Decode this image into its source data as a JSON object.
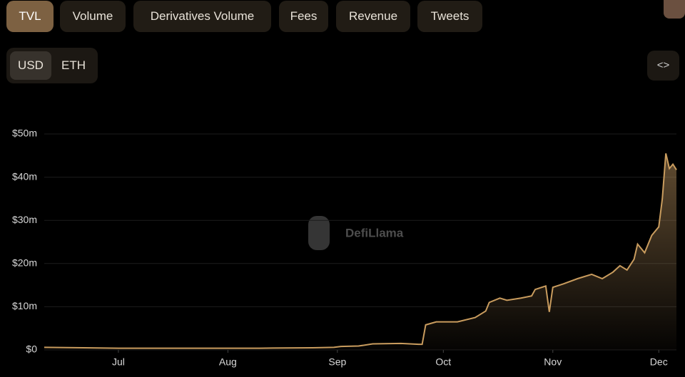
{
  "tabs": [
    "TVL",
    "Volume",
    "Derivatives Volume",
    "Fees",
    "Revenue",
    "Tweets"
  ],
  "currency": [
    "USD",
    "ETH"
  ],
  "watermark": "DefiLlama",
  "chart_data": {
    "type": "area",
    "color": "#c99c5e",
    "grid": true,
    "x": [
      -21,
      -10,
      0,
      20,
      40,
      55,
      61,
      63,
      68,
      72,
      80,
      85,
      86,
      87,
      90,
      96,
      101,
      104,
      105,
      108,
      110,
      114,
      117,
      118,
      121,
      122,
      123,
      126,
      130,
      134,
      137,
      140,
      142,
      144,
      146,
      147,
      149,
      151,
      153,
      154,
      155,
      156,
      157,
      158
    ],
    "values": [
      0.6,
      0.5,
      0.4,
      0.4,
      0.4,
      0.5,
      0.6,
      0.8,
      0.9,
      1.4,
      1.5,
      1.3,
      1.3,
      5.8,
      6.5,
      6.5,
      7.5,
      9,
      11,
      12,
      11.5,
      12,
      12.5,
      14,
      14.8,
      8.8,
      14.5,
      15.3,
      16.5,
      17.5,
      16.5,
      18,
      19.5,
      18.5,
      21,
      24.5,
      22.5,
      26.5,
      28.5,
      35,
      45.5,
      42,
      43,
      41.7
    ],
    "xlim": [
      -21,
      158
    ],
    "xticks": [
      {
        "value": 0,
        "label": "Jul"
      },
      {
        "value": 31,
        "label": "Aug"
      },
      {
        "value": 62,
        "label": "Sep"
      },
      {
        "value": 92,
        "label": "Oct"
      },
      {
        "value": 123,
        "label": "Nov"
      },
      {
        "value": 153,
        "label": "Dec"
      }
    ],
    "ylim": [
      0,
      50
    ],
    "yticks": [
      {
        "value": 0,
        "label": "$0"
      },
      {
        "value": 10,
        "label": "$10m"
      },
      {
        "value": 20,
        "label": "$20m"
      },
      {
        "value": 30,
        "label": "$30m"
      },
      {
        "value": 40,
        "label": "$40m"
      },
      {
        "value": 50,
        "label": "$50m"
      }
    ]
  }
}
